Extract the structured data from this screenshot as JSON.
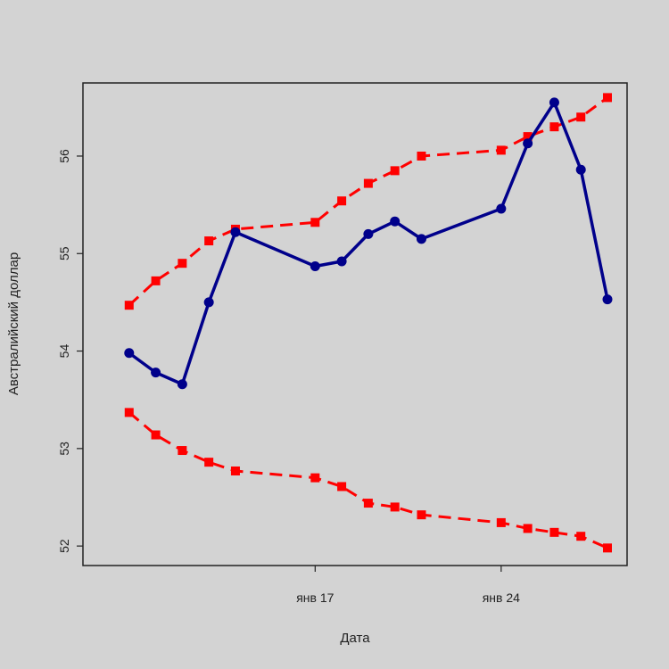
{
  "chart_data": {
    "type": "line",
    "title": "",
    "xlabel": "Дата",
    "ylabel": "Австралийский доллар",
    "x_tick_labels": [
      "янв 17",
      "янв 24"
    ],
    "y_tick_labels": [
      "52",
      "53",
      "54",
      "55",
      "56"
    ],
    "ylim": [
      51.8,
      56.75
    ],
    "x": [
      "2014-01-10",
      "2014-01-11",
      "2014-01-12",
      "2014-01-13",
      "2014-01-14",
      "2014-01-17",
      "2014-01-18",
      "2014-01-19",
      "2014-01-20",
      "2014-01-21",
      "2014-01-24",
      "2014-01-25",
      "2014-01-26",
      "2014-01-27",
      "2014-01-28"
    ],
    "x_tick_values": [
      "2014-01-17",
      "2014-01-24"
    ],
    "xlim": [
      "2014-01-09",
      "2014-01-28"
    ],
    "series": [
      {
        "color": "#00008b",
        "style": "solid",
        "values": [
          53.98,
          53.78,
          53.66,
          54.5,
          55.22,
          54.87,
          54.92,
          55.2,
          55.33,
          55.15,
          55.46,
          56.13,
          56.55,
          55.86,
          54.53
        ]
      },
      {
        "color": "#ff0000",
        "style": "dashed",
        "values": [
          54.47,
          54.72,
          54.9,
          55.13,
          55.25,
          55.32,
          55.54,
          55.72,
          55.85,
          56.0,
          56.06,
          56.2,
          56.3,
          56.4,
          56.6
        ]
      },
      {
        "color": "#ff0000",
        "style": "dashed",
        "values": [
          53.37,
          53.14,
          52.98,
          52.86,
          52.77,
          52.7,
          52.61,
          52.44,
          52.4,
          52.32,
          52.24,
          52.18,
          52.14,
          52.1,
          51.98
        ]
      }
    ],
    "grid": false,
    "legend": "none"
  }
}
